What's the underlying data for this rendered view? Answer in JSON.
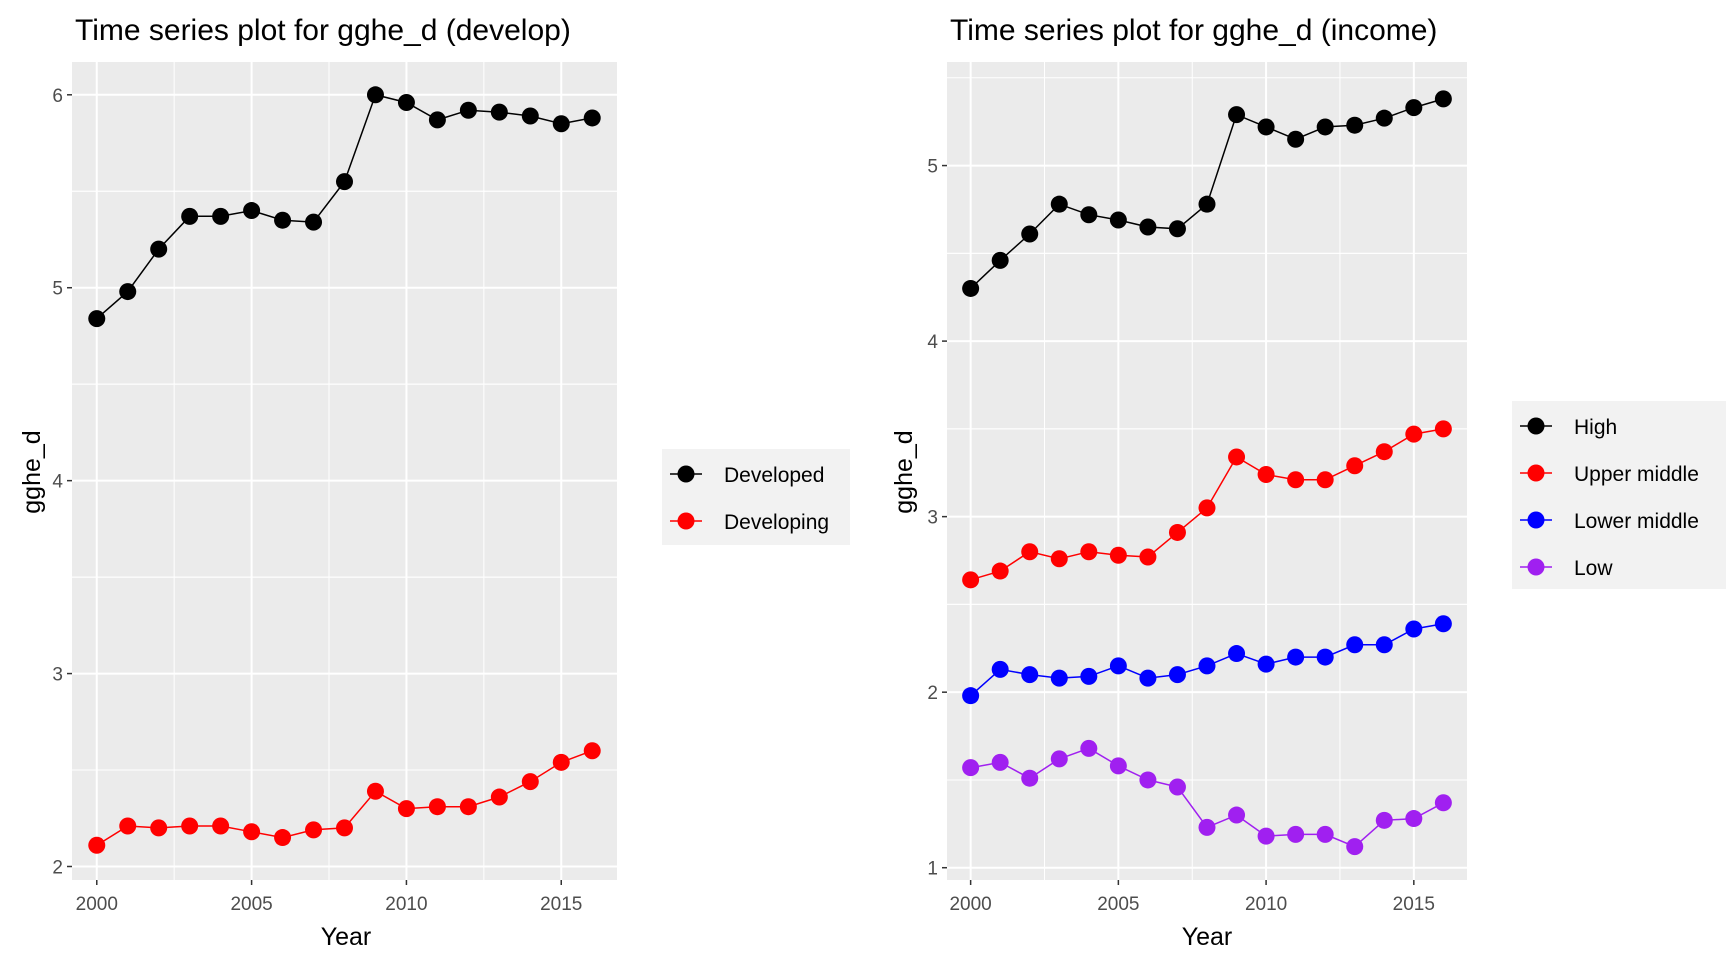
{
  "chart_data": [
    {
      "type": "line",
      "title": "Time series plot for gghe_d (develop)",
      "xlabel": "Year",
      "ylabel": "gghe_d",
      "x": [
        2000,
        2001,
        2002,
        2003,
        2004,
        2005,
        2006,
        2007,
        2008,
        2009,
        2010,
        2011,
        2012,
        2013,
        2014,
        2015,
        2016
      ],
      "xlim": [
        1999.2,
        2016.8
      ],
      "ylim": [
        1.93,
        6.17
      ],
      "x_ticks": [
        "2000",
        "2005",
        "2010",
        "2015"
      ],
      "y_ticks": [
        "2",
        "3",
        "4",
        "5",
        "6"
      ],
      "grid": true,
      "legend_position": "right",
      "series": [
        {
          "name": "Developed",
          "color": "#000000",
          "values": [
            4.84,
            4.98,
            5.2,
            5.37,
            5.37,
            5.4,
            5.35,
            5.34,
            5.55,
            6.0,
            5.96,
            5.87,
            5.92,
            5.91,
            5.89,
            5.85,
            5.88
          ]
        },
        {
          "name": "Developing",
          "color": "#ff0000",
          "values": [
            2.11,
            2.21,
            2.2,
            2.21,
            2.21,
            2.18,
            2.15,
            2.19,
            2.2,
            2.39,
            2.3,
            2.31,
            2.31,
            2.36,
            2.44,
            2.54,
            2.6
          ]
        }
      ]
    },
    {
      "type": "line",
      "title": "Time series plot for gghe_d (income)",
      "xlabel": "Year",
      "ylabel": "gghe_d",
      "x": [
        2000,
        2001,
        2002,
        2003,
        2004,
        2005,
        2006,
        2007,
        2008,
        2009,
        2010,
        2011,
        2012,
        2013,
        2014,
        2015,
        2016
      ],
      "xlim": [
        1999.2,
        2016.8
      ],
      "ylim": [
        0.93,
        5.59
      ],
      "x_ticks": [
        "2000",
        "2005",
        "2010",
        "2015"
      ],
      "y_ticks": [
        "1",
        "2",
        "3",
        "4",
        "5"
      ],
      "grid": true,
      "legend_position": "right",
      "series": [
        {
          "name": "High",
          "color": "#000000",
          "values": [
            4.3,
            4.46,
            4.61,
            4.78,
            4.72,
            4.69,
            4.65,
            4.64,
            4.78,
            5.29,
            5.22,
            5.15,
            5.22,
            5.23,
            5.27,
            5.33,
            5.38
          ]
        },
        {
          "name": "Upper middle",
          "color": "#ff0000",
          "values": [
            2.64,
            2.69,
            2.8,
            2.76,
            2.8,
            2.78,
            2.77,
            2.91,
            3.05,
            3.34,
            3.24,
            3.21,
            3.21,
            3.29,
            3.37,
            3.47,
            3.5
          ]
        },
        {
          "name": "Lower middle",
          "color": "#0000ff",
          "values": [
            1.98,
            2.13,
            2.1,
            2.08,
            2.09,
            2.15,
            2.08,
            2.1,
            2.15,
            2.22,
            2.16,
            2.2,
            2.2,
            2.27,
            2.27,
            2.36,
            2.39
          ]
        },
        {
          "name": "Low",
          "color": "#a020f0",
          "values": [
            1.57,
            1.6,
            1.51,
            1.62,
            1.68,
            1.58,
            1.5,
            1.46,
            1.23,
            1.3,
            1.18,
            1.19,
            1.19,
            1.12,
            1.27,
            1.28,
            1.37
          ]
        }
      ]
    }
  ]
}
